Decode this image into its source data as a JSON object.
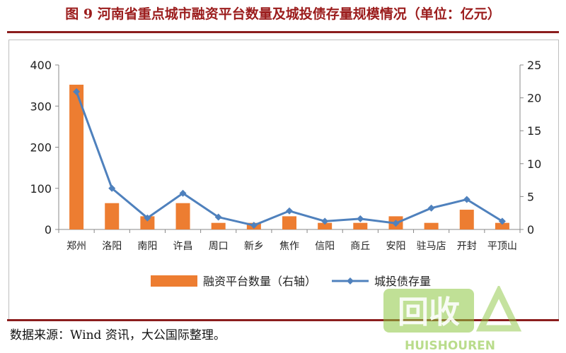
{
  "title": "图 9 河南省重点城市融资平台数量及城投债存量规模情况（单位：亿元）",
  "source": "数据来源：Wind 资讯，大公国际整理。",
  "watermark": {
    "text": "回收",
    "subtext": "HUISHOUREN"
  },
  "colors": {
    "bar": "#ed7d31",
    "line": "#4f81bd",
    "title": "#9b1c1c",
    "rule": "#8b1d1d"
  },
  "chart_data": {
    "type": "bar",
    "categories": [
      "郑州",
      "洛阳",
      "南阳",
      "许昌",
      "周口",
      "新乡",
      "焦作",
      "信阳",
      "商丘",
      "安阳",
      "驻马店",
      "开封",
      "平顶山"
    ],
    "y_left": {
      "ylim": [
        0,
        400
      ],
      "ticks": [
        0,
        100,
        200,
        300,
        400
      ]
    },
    "y_right": {
      "ylim": [
        0,
        25
      ],
      "ticks": [
        0,
        5,
        10,
        15,
        20,
        25
      ]
    },
    "series": [
      {
        "name": "融资平台数量（右轴）",
        "type": "bar",
        "axis": "right",
        "values": [
          22,
          4,
          2,
          4,
          1,
          1,
          2,
          1,
          1,
          2,
          1,
          3,
          1
        ]
      },
      {
        "name": "城投债存量",
        "type": "line",
        "axis": "left",
        "values": [
          335,
          100,
          28,
          88,
          30,
          10,
          45,
          20,
          26,
          15,
          52,
          73,
          20
        ]
      }
    ],
    "legend": "bottom",
    "grid": false
  }
}
